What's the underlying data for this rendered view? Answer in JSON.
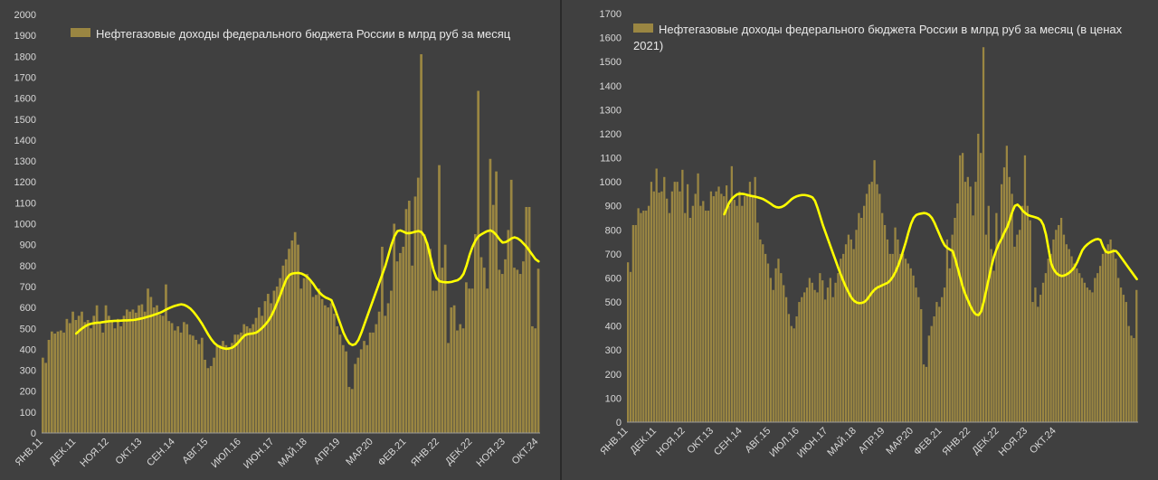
{
  "chart_data": [
    {
      "type": "bar",
      "legend_label": "Нефтегазовые доходы федерального бюджета России в млрд руб за месяц",
      "legend_position": "top-left",
      "ylim": [
        0,
        2000
      ],
      "yticks": [
        0,
        100,
        200,
        300,
        400,
        500,
        600,
        700,
        800,
        900,
        1000,
        1100,
        1200,
        1300,
        1400,
        1500,
        1600,
        1700,
        1800,
        1900,
        2000
      ],
      "xtick_labels": [
        "ЯНВ.11",
        "ДЕК.11",
        "НОЯ.12",
        "ОКТ.13",
        "СЕН.14",
        "АВГ.15",
        "ИЮЛ.16",
        "ИЮН.17",
        "МАЙ.18",
        "АПР.19",
        "МАР.20",
        "ФЕВ.21",
        "ЯНВ.22",
        "ДЕК.22",
        "НОЯ.23",
        "ОКТ.24"
      ],
      "bar_color": "#9a8642",
      "line_color": "#ffff00",
      "grid": false,
      "values": [
        360,
        335,
        445,
        485,
        475,
        485,
        490,
        480,
        545,
        525,
        580,
        540,
        560,
        580,
        530,
        540,
        500,
        560,
        610,
        530,
        480,
        610,
        560,
        540,
        500,
        545,
        510,
        560,
        590,
        580,
        590,
        575,
        610,
        615,
        580,
        690,
        650,
        600,
        610,
        565,
        560,
        710,
        535,
        525,
        490,
        510,
        480,
        530,
        520,
        470,
        465,
        445,
        425,
        455,
        350,
        310,
        320,
        360,
        415,
        420,
        440,
        420,
        400,
        430,
        470,
        470,
        480,
        520,
        510,
        500,
        520,
        550,
        600,
        560,
        630,
        665,
        620,
        680,
        700,
        740,
        800,
        830,
        880,
        920,
        960,
        900,
        690,
        740,
        760,
        730,
        650,
        660,
        690,
        640,
        610,
        600,
        620,
        570,
        510,
        470,
        420,
        390,
        220,
        210,
        330,
        360,
        400,
        440,
        420,
        480,
        480,
        520,
        580,
        890,
        560,
        620,
        680,
        1000,
        820,
        860,
        890,
        1070,
        1110,
        800,
        1130,
        1220,
        1810,
        950,
        910,
        880,
        680,
        680,
        1280,
        790,
        900,
        430,
        600,
        610,
        490,
        520,
        500,
        720,
        690,
        690,
        950,
        1635,
        840,
        790,
        690,
        1310,
        1090,
        1250,
        780,
        760,
        830,
        970,
        1210,
        790,
        780,
        760,
        820,
        1080,
        1080,
        510,
        500,
        785
      ],
      "moving_average": [
        475,
        488,
        500,
        510,
        518,
        522,
        525,
        527,
        528,
        530,
        532,
        534,
        535,
        536,
        536,
        537,
        538,
        538,
        539,
        540,
        542,
        545,
        548,
        552,
        556,
        560,
        565,
        570,
        575,
        582,
        590,
        597,
        603,
        608,
        612,
        615,
        612,
        605,
        595,
        580,
        562,
        542,
        520,
        495,
        470,
        448,
        430,
        418,
        410,
        405,
        402,
        404,
        408,
        418,
        432,
        450,
        465,
        472,
        474,
        476,
        480,
        490,
        503,
        518,
        536,
        560,
        590,
        625,
        660,
        700,
        735,
        755,
        762,
        764,
        765,
        762,
        755,
        745,
        730,
        712,
        690,
        672,
        658,
        648,
        642,
        635,
        600,
        560,
        520,
        480,
        450,
        428,
        420,
        425,
        445,
        480,
        520,
        560,
        600,
        640,
        680,
        720,
        760,
        800,
        850,
        900,
        940,
        965,
        968,
        962,
        955,
        955,
        958,
        962,
        965,
        960,
        940,
        900,
        840,
        780,
        740,
        725,
        722,
        720,
        720,
        722,
        726,
        730,
        740,
        760,
        800,
        850,
        890,
        920,
        940,
        950,
        958,
        965,
        968,
        960,
        945,
        925,
        910,
        912,
        920,
        930,
        935,
        930,
        920,
        905,
        890,
        870,
        850,
        830,
        820
      ]
    },
    {
      "type": "bar",
      "legend_label": "Нефтегазовые доходы федерального бюджета России в млрд руб за месяц (в ценах 2021)",
      "legend_position": "top-left",
      "ylim": [
        0,
        1700
      ],
      "yticks": [
        0,
        100,
        200,
        300,
        400,
        500,
        600,
        700,
        800,
        900,
        1000,
        1100,
        1200,
        1300,
        1400,
        1500,
        1600,
        1700
      ],
      "xtick_labels": [
        "ЯНВ.11",
        "ДЕК.11",
        "НОЯ.12",
        "ОКТ.13",
        "СЕН.14",
        "АВГ.15",
        "ИЮЛ.16",
        "ИЮН.17",
        "МАЙ.18",
        "АПР.19",
        "МАР.20",
        "ФЕВ.21",
        "ЯНВ.22",
        "ДЕК.22",
        "НОЯ.23",
        "ОКТ.24"
      ],
      "bar_color": "#9a8642",
      "line_color": "#ffff00",
      "grid": false,
      "values": [
        665,
        625,
        820,
        820,
        890,
        870,
        880,
        880,
        900,
        1000,
        960,
        1055,
        955,
        960,
        1020,
        930,
        870,
        960,
        1000,
        1000,
        960,
        1050,
        870,
        990,
        850,
        900,
        950,
        1035,
        900,
        920,
        880,
        880,
        960,
        940,
        960,
        980,
        950,
        940,
        985,
        900,
        1065,
        925,
        900,
        960,
        900,
        940,
        950,
        1000,
        940,
        1020,
        830,
        760,
        740,
        700,
        660,
        600,
        550,
        640,
        680,
        620,
        570,
        520,
        450,
        400,
        390,
        440,
        500,
        520,
        540,
        560,
        600,
        580,
        550,
        540,
        620,
        590,
        510,
        560,
        600,
        520,
        580,
        620,
        680,
        700,
        740,
        780,
        760,
        720,
        800,
        870,
        850,
        900,
        950,
        990,
        1000,
        1090,
        990,
        950,
        870,
        820,
        760,
        700,
        700,
        810,
        760,
        700,
        700,
        680,
        660,
        640,
        610,
        560,
        520,
        470,
        240,
        230,
        360,
        400,
        440,
        500,
        480,
        520,
        560,
        760,
        640,
        780,
        850,
        910,
        1110,
        1120,
        1000,
        1020,
        980,
        860,
        1000,
        1200,
        1120,
        1560,
        780,
        900,
        720,
        630,
        870,
        740,
        990,
        1060,
        1150,
        1020,
        950,
        730,
        780,
        800,
        900,
        1110,
        900,
        840,
        500,
        560,
        480,
        530,
        580,
        620,
        680,
        700,
        760,
        800,
        820,
        850,
        780,
        740,
        720,
        690,
        660,
        640,
        620,
        600,
        580,
        560,
        550,
        540,
        600,
        620,
        650,
        700,
        720,
        740,
        760,
        720,
        680,
        600,
        560,
        530,
        500,
        400,
        360,
        350,
        550
      ],
      "moving_average": [
        865,
        890,
        915,
        930,
        940,
        948,
        950,
        950,
        948,
        945,
        942,
        940,
        938,
        935,
        932,
        928,
        922,
        915,
        908,
        900,
        895,
        893,
        895,
        900,
        908,
        918,
        928,
        935,
        940,
        943,
        945,
        945,
        943,
        940,
        935,
        920,
        890,
        855,
        820,
        790,
        760,
        730,
        700,
        670,
        640,
        612,
        585,
        560,
        538,
        518,
        505,
        498,
        495,
        496,
        500,
        510,
        525,
        540,
        552,
        560,
        565,
        570,
        575,
        580,
        590,
        605,
        625,
        650,
        680,
        715,
        750,
        790,
        825,
        850,
        862,
        866,
        868,
        870,
        868,
        862,
        850,
        830,
        805,
        780,
        755,
        735,
        725,
        718,
        712,
        680,
        640,
        600,
        560,
        530,
        505,
        480,
        460,
        448,
        445,
        460,
        500,
        550,
        600,
        650,
        690,
        720,
        745,
        765,
        790,
        810,
        840,
        875,
        900,
        905,
        895,
        880,
        870,
        862,
        858,
        855,
        852,
        848,
        840,
        820,
        780,
        720,
        660,
        635,
        620,
        612,
        608,
        610,
        615,
        622,
        632,
        645,
        665,
        690,
        715,
        730,
        740,
        748,
        755,
        760,
        762,
        758,
        730,
        710,
        705,
        708,
        712,
        712,
        700,
        685,
        670,
        655,
        640,
        625,
        610,
        595
      ]
    }
  ]
}
